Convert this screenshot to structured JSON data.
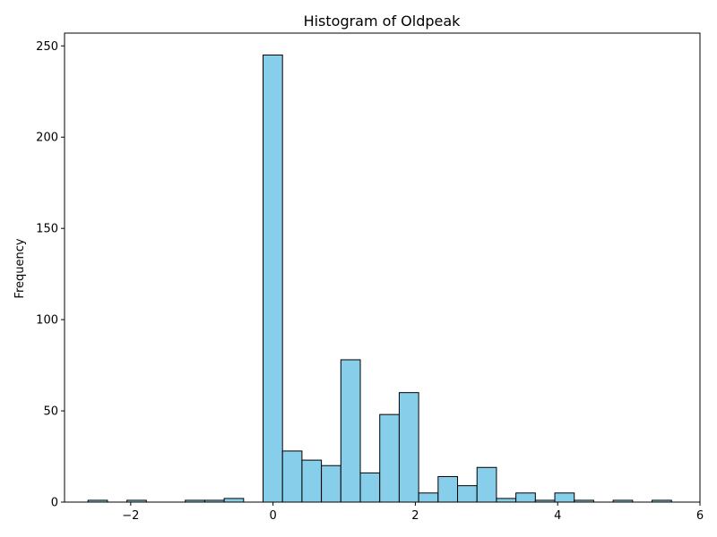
{
  "chart_data": {
    "type": "bar",
    "title": "Histogram of Oldpeak",
    "xlabel": "",
    "ylabel": "Frequency",
    "xlim": [
      -2.93,
      6.0
    ],
    "ylim": [
      0,
      257
    ],
    "x_ticks": [
      -2,
      0,
      2,
      4,
      6
    ],
    "x_tick_labels": [
      "−2",
      "0",
      "2",
      "4",
      "6"
    ],
    "y_ticks": [
      0,
      50,
      100,
      150,
      200,
      250
    ],
    "y_tick_labels": [
      "0",
      "50",
      "100",
      "150",
      "200",
      "250"
    ],
    "bar_color": "#87ceeb",
    "edge_color": "#000000",
    "bin_width": 0.2733,
    "bins": [
      {
        "x0": -2.6,
        "count": 1
      },
      {
        "x0": -2.0533,
        "count": 1
      },
      {
        "x0": -1.2333,
        "count": 1
      },
      {
        "x0": -0.96,
        "count": 1
      },
      {
        "x0": -0.6867,
        "count": 2
      },
      {
        "x0": -0.14,
        "count": 245
      },
      {
        "x0": 0.1333,
        "count": 28
      },
      {
        "x0": 0.4067,
        "count": 23
      },
      {
        "x0": 0.68,
        "count": 20
      },
      {
        "x0": 0.9533,
        "count": 78
      },
      {
        "x0": 1.2267,
        "count": 16
      },
      {
        "x0": 1.5,
        "count": 48
      },
      {
        "x0": 1.7733,
        "count": 60
      },
      {
        "x0": 2.0467,
        "count": 5
      },
      {
        "x0": 2.32,
        "count": 14
      },
      {
        "x0": 2.5933,
        "count": 9
      },
      {
        "x0": 2.8667,
        "count": 19
      },
      {
        "x0": 3.14,
        "count": 2
      },
      {
        "x0": 3.4133,
        "count": 5
      },
      {
        "x0": 3.6867,
        "count": 1
      },
      {
        "x0": 3.96,
        "count": 5
      },
      {
        "x0": 4.2333,
        "count": 1
      },
      {
        "x0": 4.78,
        "count": 1
      },
      {
        "x0": 5.3267,
        "count": 1
      }
    ],
    "grid": false,
    "legend": "none"
  }
}
